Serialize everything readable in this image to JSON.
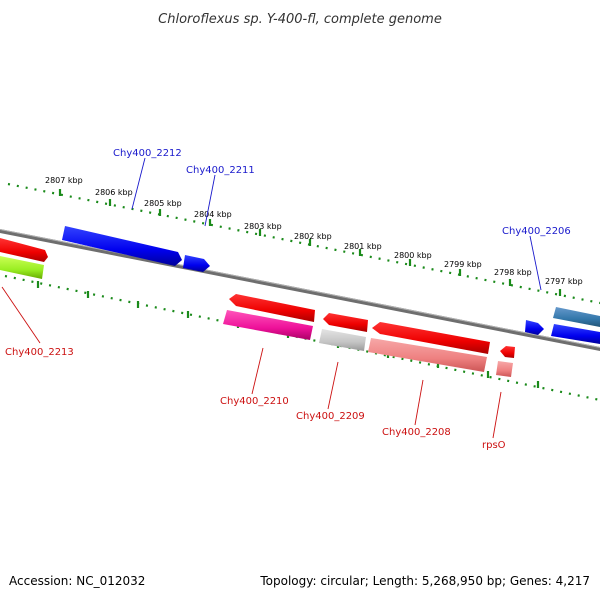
{
  "title": "Chloroflexus sp. Y-400-fl, complete genome",
  "footer": {
    "accession": "Accession: NC_012032",
    "summary": "Topology: circular; Length: 5,268,950 bp; Genes: 4,217"
  },
  "colors": {
    "backbone": "#808080",
    "tick": "#1a8a1a",
    "label_forward": "#1a1acc",
    "label_reverse": "#cc1111"
  },
  "ticks": [
    {
      "label": "2807 kbp"
    },
    {
      "label": "2806 kbp"
    },
    {
      "label": "2805 kbp"
    },
    {
      "label": "2804 kbp"
    },
    {
      "label": "2803 kbp"
    },
    {
      "label": "2802 kbp"
    },
    {
      "label": "2801 kbp"
    },
    {
      "label": "2800 kbp"
    },
    {
      "label": "2799 kbp"
    },
    {
      "label": "2798 kbp"
    },
    {
      "label": "2797 kbp"
    }
  ],
  "genes": [
    {
      "id": "g-2212",
      "label": "Chy400_2212",
      "strand": "+",
      "color": "#0000ee"
    },
    {
      "id": "g-2211",
      "label": "Chy400_2211",
      "strand": "+",
      "color": "#0000ee"
    },
    {
      "id": "g-2213",
      "label": "Chy400_2213",
      "strand": "-",
      "color": "#ee0000"
    },
    {
      "id": "g-2210",
      "label": "Chy400_2210",
      "strand": "-",
      "color": "#ee0000"
    },
    {
      "id": "g-2209",
      "label": "Chy400_2209",
      "strand": "-",
      "color": "#ee0000"
    },
    {
      "id": "g-2208",
      "label": "Chy400_2208",
      "strand": "-",
      "color": "#ee0000"
    },
    {
      "id": "g-rpsO",
      "label": "rpsO",
      "strand": "-",
      "color": "#ee0000"
    },
    {
      "id": "g-2206",
      "label": "Chy400_2206",
      "strand": "+",
      "color": "#3377aa"
    }
  ]
}
